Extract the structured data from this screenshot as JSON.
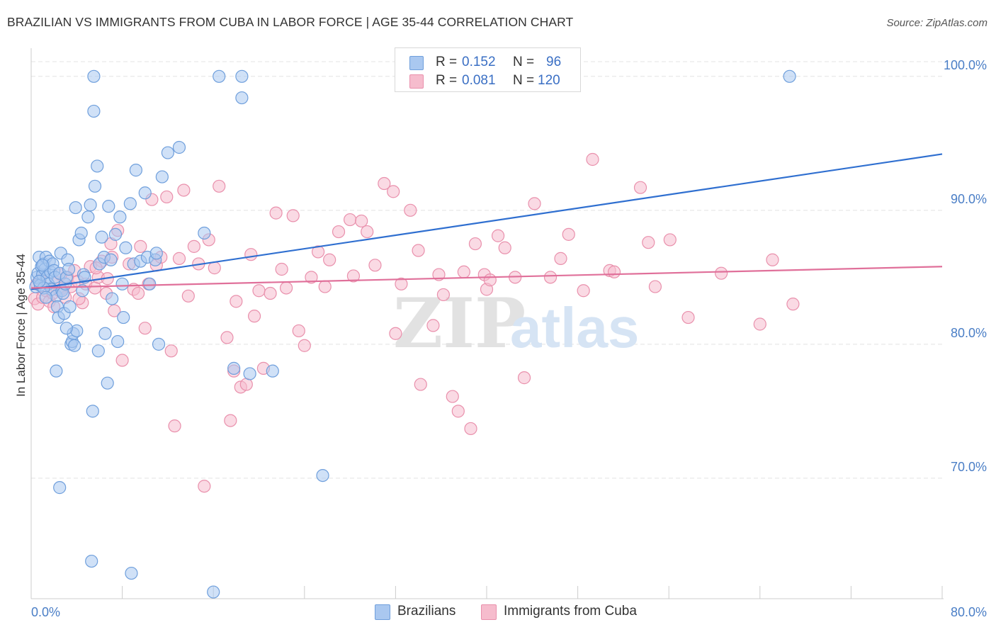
{
  "title": "BRAZILIAN VS IMMIGRANTS FROM CUBA IN LABOR FORCE | AGE 35-44 CORRELATION CHART",
  "source": "Source: ZipAtlas.com",
  "watermark": {
    "zip": "ZIP",
    "atlas": "atlas"
  },
  "legend": {
    "rows": [
      {
        "r_label": "R =",
        "r_value": "0.152",
        "n_label": "N =",
        "n_value": "96"
      },
      {
        "r_label": "R =",
        "r_value": "0.081",
        "n_label": "N =",
        "n_value": "120"
      }
    ]
  },
  "colors": {
    "blue_fill": "#aac8f0",
    "blue_stroke": "#6f9fdc",
    "blue_line": "#2f6fd0",
    "pink_fill": "#f6bccd",
    "pink_stroke": "#e990ac",
    "pink_line": "#e0709a",
    "tick_text": "#4a7ec6",
    "grid": "#e4e4e4"
  },
  "chart_data": {
    "type": "scatter",
    "title": "BRAZILIAN VS IMMIGRANTS FROM CUBA IN LABOR FORCE | AGE 35-44 CORRELATION CHART",
    "xlabel": "",
    "ylabel": "In Labor Force | Age 35-44",
    "xlim": [
      0,
      80
    ],
    "ylim": [
      61,
      102
    ],
    "x_tick_labels": [
      "0.0%",
      "80.0%"
    ],
    "y_ticks": [
      70,
      80,
      90,
      100
    ],
    "y_tick_labels": [
      "70.0%",
      "80.0%",
      "90.0%",
      "100.0%"
    ],
    "grid": true,
    "legend_position": "bottom",
    "series": [
      {
        "name": "Brazilians",
        "R": 0.152,
        "N": 96,
        "trend": {
          "x": [
            0,
            80
          ],
          "y": [
            84.1,
            94.2
          ]
        },
        "points": [
          [
            0.4,
            84.3
          ],
          [
            0.5,
            85.0
          ],
          [
            0.6,
            85.3
          ],
          [
            0.7,
            86.5
          ],
          [
            0.8,
            84.4
          ],
          [
            0.9,
            85.8
          ],
          [
            1.0,
            85.2
          ],
          [
            1.1,
            86.0
          ],
          [
            1.2,
            85.6
          ],
          [
            1.3,
            86.5
          ],
          [
            1.4,
            85.0
          ],
          [
            1.5,
            84.5
          ],
          [
            1.6,
            86.2
          ],
          [
            1.7,
            85.4
          ],
          [
            1.8,
            84.1
          ],
          [
            1.9,
            86.0
          ],
          [
            2.0,
            85.5
          ],
          [
            2.1,
            85.0
          ],
          [
            2.2,
            83.6
          ],
          [
            2.3,
            82.8
          ],
          [
            2.4,
            82.0
          ],
          [
            2.5,
            85.3
          ],
          [
            2.6,
            86.8
          ],
          [
            2.7,
            84.0
          ],
          [
            2.8,
            83.8
          ],
          [
            2.9,
            82.3
          ],
          [
            3.0,
            84.5
          ],
          [
            3.1,
            85.0
          ],
          [
            3.2,
            86.3
          ],
          [
            3.3,
            85.6
          ],
          [
            3.4,
            82.8
          ],
          [
            3.5,
            80.0
          ],
          [
            3.6,
            80.2
          ],
          [
            3.7,
            80.8
          ],
          [
            3.8,
            79.9
          ],
          [
            3.9,
            90.2
          ],
          [
            4.0,
            81.0
          ],
          [
            4.2,
            87.8
          ],
          [
            4.4,
            88.3
          ],
          [
            4.5,
            84.0
          ],
          [
            4.6,
            85.2
          ],
          [
            4.7,
            85.0
          ],
          [
            5.0,
            89.5
          ],
          [
            5.2,
            90.4
          ],
          [
            5.4,
            75.0
          ],
          [
            5.6,
            91.8
          ],
          [
            5.8,
            93.3
          ],
          [
            5.9,
            79.5
          ],
          [
            6.0,
            86.0
          ],
          [
            6.2,
            88.0
          ],
          [
            6.4,
            86.5
          ],
          [
            6.5,
            80.8
          ],
          [
            6.7,
            77.1
          ],
          [
            6.8,
            90.3
          ],
          [
            7.0,
            86.3
          ],
          [
            7.1,
            83.4
          ],
          [
            7.4,
            88.2
          ],
          [
            7.6,
            80.2
          ],
          [
            7.8,
            89.5
          ],
          [
            8.0,
            84.5
          ],
          [
            8.1,
            82.0
          ],
          [
            8.3,
            87.2
          ],
          [
            8.7,
            90.5
          ],
          [
            9.0,
            86.0
          ],
          [
            9.2,
            93.0
          ],
          [
            9.6,
            86.2
          ],
          [
            10.0,
            91.3
          ],
          [
            10.2,
            86.5
          ],
          [
            10.4,
            84.5
          ],
          [
            10.9,
            86.3
          ],
          [
            11.0,
            86.8
          ],
          [
            11.2,
            80.0
          ],
          [
            11.5,
            92.5
          ],
          [
            12.0,
            94.3
          ],
          [
            13.0,
            94.7
          ],
          [
            15.2,
            88.3
          ],
          [
            16.5,
            100.0
          ],
          [
            17.8,
            78.2
          ],
          [
            19.2,
            77.8
          ],
          [
            21.2,
            78.0
          ],
          [
            1.0,
            85.9
          ],
          [
            1.1,
            84.2
          ],
          [
            2.2,
            78.0
          ],
          [
            2.5,
            69.3
          ],
          [
            5.5,
            97.4
          ],
          [
            5.3,
            63.8
          ],
          [
            8.8,
            62.9
          ],
          [
            16.0,
            61.5
          ],
          [
            18.5,
            98.4
          ],
          [
            25.6,
            70.2
          ],
          [
            5.5,
            100.0
          ],
          [
            18.5,
            100.0
          ],
          [
            66.6,
            100.0
          ],
          [
            0.7,
            84.7
          ],
          [
            1.3,
            83.5
          ],
          [
            3.1,
            81.2
          ]
        ]
      },
      {
        "name": "Immigrants from Cuba",
        "R": 0.081,
        "N": 120,
        "trend": {
          "x": [
            0,
            80
          ],
          "y": [
            84.2,
            85.8
          ]
        },
        "points": [
          [
            0.3,
            83.4
          ],
          [
            0.5,
            84.5
          ],
          [
            0.6,
            83.0
          ],
          [
            0.8,
            84.8
          ],
          [
            1.0,
            83.5
          ],
          [
            1.3,
            84.0
          ],
          [
            1.6,
            83.2
          ],
          [
            1.9,
            83.8
          ],
          [
            2.0,
            82.8
          ],
          [
            2.2,
            84.6
          ],
          [
            2.5,
            84.0
          ],
          [
            2.8,
            84.2
          ],
          [
            3.0,
            83.5
          ],
          [
            3.2,
            85.0
          ],
          [
            3.5,
            84.3
          ],
          [
            3.8,
            85.5
          ],
          [
            4.1,
            84.7
          ],
          [
            4.5,
            83.1
          ],
          [
            4.8,
            84.5
          ],
          [
            5.2,
            85.8
          ],
          [
            5.6,
            84.2
          ],
          [
            5.9,
            85.0
          ],
          [
            6.2,
            86.2
          ],
          [
            6.6,
            83.8
          ],
          [
            7.0,
            87.5
          ],
          [
            7.3,
            82.5
          ],
          [
            7.6,
            88.5
          ],
          [
            8.0,
            78.8
          ],
          [
            8.6,
            86.0
          ],
          [
            9.0,
            84.1
          ],
          [
            9.4,
            83.8
          ],
          [
            9.6,
            87.3
          ],
          [
            10.0,
            81.2
          ],
          [
            10.3,
            84.5
          ],
          [
            10.6,
            90.8
          ],
          [
            11.0,
            85.9
          ],
          [
            11.4,
            86.5
          ],
          [
            11.9,
            91.0
          ],
          [
            12.3,
            79.5
          ],
          [
            12.6,
            73.9
          ],
          [
            13.0,
            86.4
          ],
          [
            13.4,
            91.5
          ],
          [
            13.8,
            83.6
          ],
          [
            14.3,
            87.3
          ],
          [
            14.7,
            86.0
          ],
          [
            15.2,
            69.4
          ],
          [
            15.6,
            87.8
          ],
          [
            16.1,
            85.7
          ],
          [
            16.5,
            91.8
          ],
          [
            17.2,
            80.5
          ],
          [
            17.5,
            74.3
          ],
          [
            17.8,
            78.0
          ],
          [
            18.0,
            83.2
          ],
          [
            18.4,
            76.8
          ],
          [
            18.9,
            77.0
          ],
          [
            19.3,
            86.7
          ],
          [
            19.6,
            82.1
          ],
          [
            20.0,
            84.0
          ],
          [
            20.4,
            78.2
          ],
          [
            21.0,
            83.8
          ],
          [
            21.5,
            89.8
          ],
          [
            22.0,
            85.6
          ],
          [
            22.4,
            84.2
          ],
          [
            23.0,
            89.6
          ],
          [
            23.5,
            81.0
          ],
          [
            24.0,
            79.9
          ],
          [
            24.6,
            85.0
          ],
          [
            25.2,
            86.9
          ],
          [
            25.8,
            84.3
          ],
          [
            26.2,
            86.3
          ],
          [
            27.0,
            88.4
          ],
          [
            28.0,
            89.3
          ],
          [
            28.3,
            85.1
          ],
          [
            29.0,
            89.2
          ],
          [
            29.5,
            88.4
          ],
          [
            30.2,
            85.9
          ],
          [
            31.0,
            92.0
          ],
          [
            31.8,
            91.4
          ],
          [
            32.0,
            80.8
          ],
          [
            32.5,
            84.5
          ],
          [
            33.3,
            90.0
          ],
          [
            34.0,
            87.0
          ],
          [
            34.2,
            77.0
          ],
          [
            35.3,
            81.4
          ],
          [
            35.8,
            85.2
          ],
          [
            36.2,
            83.7
          ],
          [
            37.0,
            76.1
          ],
          [
            37.5,
            75.0
          ],
          [
            38.0,
            85.4
          ],
          [
            38.6,
            73.7
          ],
          [
            39.0,
            87.5
          ],
          [
            39.8,
            85.2
          ],
          [
            40.0,
            84.1
          ],
          [
            40.3,
            84.8
          ],
          [
            41.0,
            88.1
          ],
          [
            41.6,
            87.2
          ],
          [
            42.5,
            85.0
          ],
          [
            43.3,
            77.5
          ],
          [
            44.2,
            90.5
          ],
          [
            45.6,
            85.0
          ],
          [
            46.5,
            86.4
          ],
          [
            47.2,
            88.2
          ],
          [
            48.5,
            84.0
          ],
          [
            49.3,
            93.8
          ],
          [
            50.8,
            85.5
          ],
          [
            51.2,
            85.4
          ],
          [
            53.5,
            91.7
          ],
          [
            54.2,
            87.6
          ],
          [
            54.8,
            84.3
          ],
          [
            56.1,
            87.8
          ],
          [
            57.7,
            82.0
          ],
          [
            60.6,
            85.3
          ],
          [
            64.0,
            81.5
          ],
          [
            65.1,
            86.3
          ],
          [
            66.9,
            83.0
          ],
          [
            2.6,
            85.2
          ],
          [
            4.2,
            83.4
          ],
          [
            5.7,
            85.7
          ],
          [
            6.7,
            84.9
          ],
          [
            7.1,
            86.5
          ]
        ]
      }
    ]
  },
  "bottom_legend": [
    {
      "label": "Brazilians"
    },
    {
      "label": "Immigrants from Cuba"
    }
  ]
}
